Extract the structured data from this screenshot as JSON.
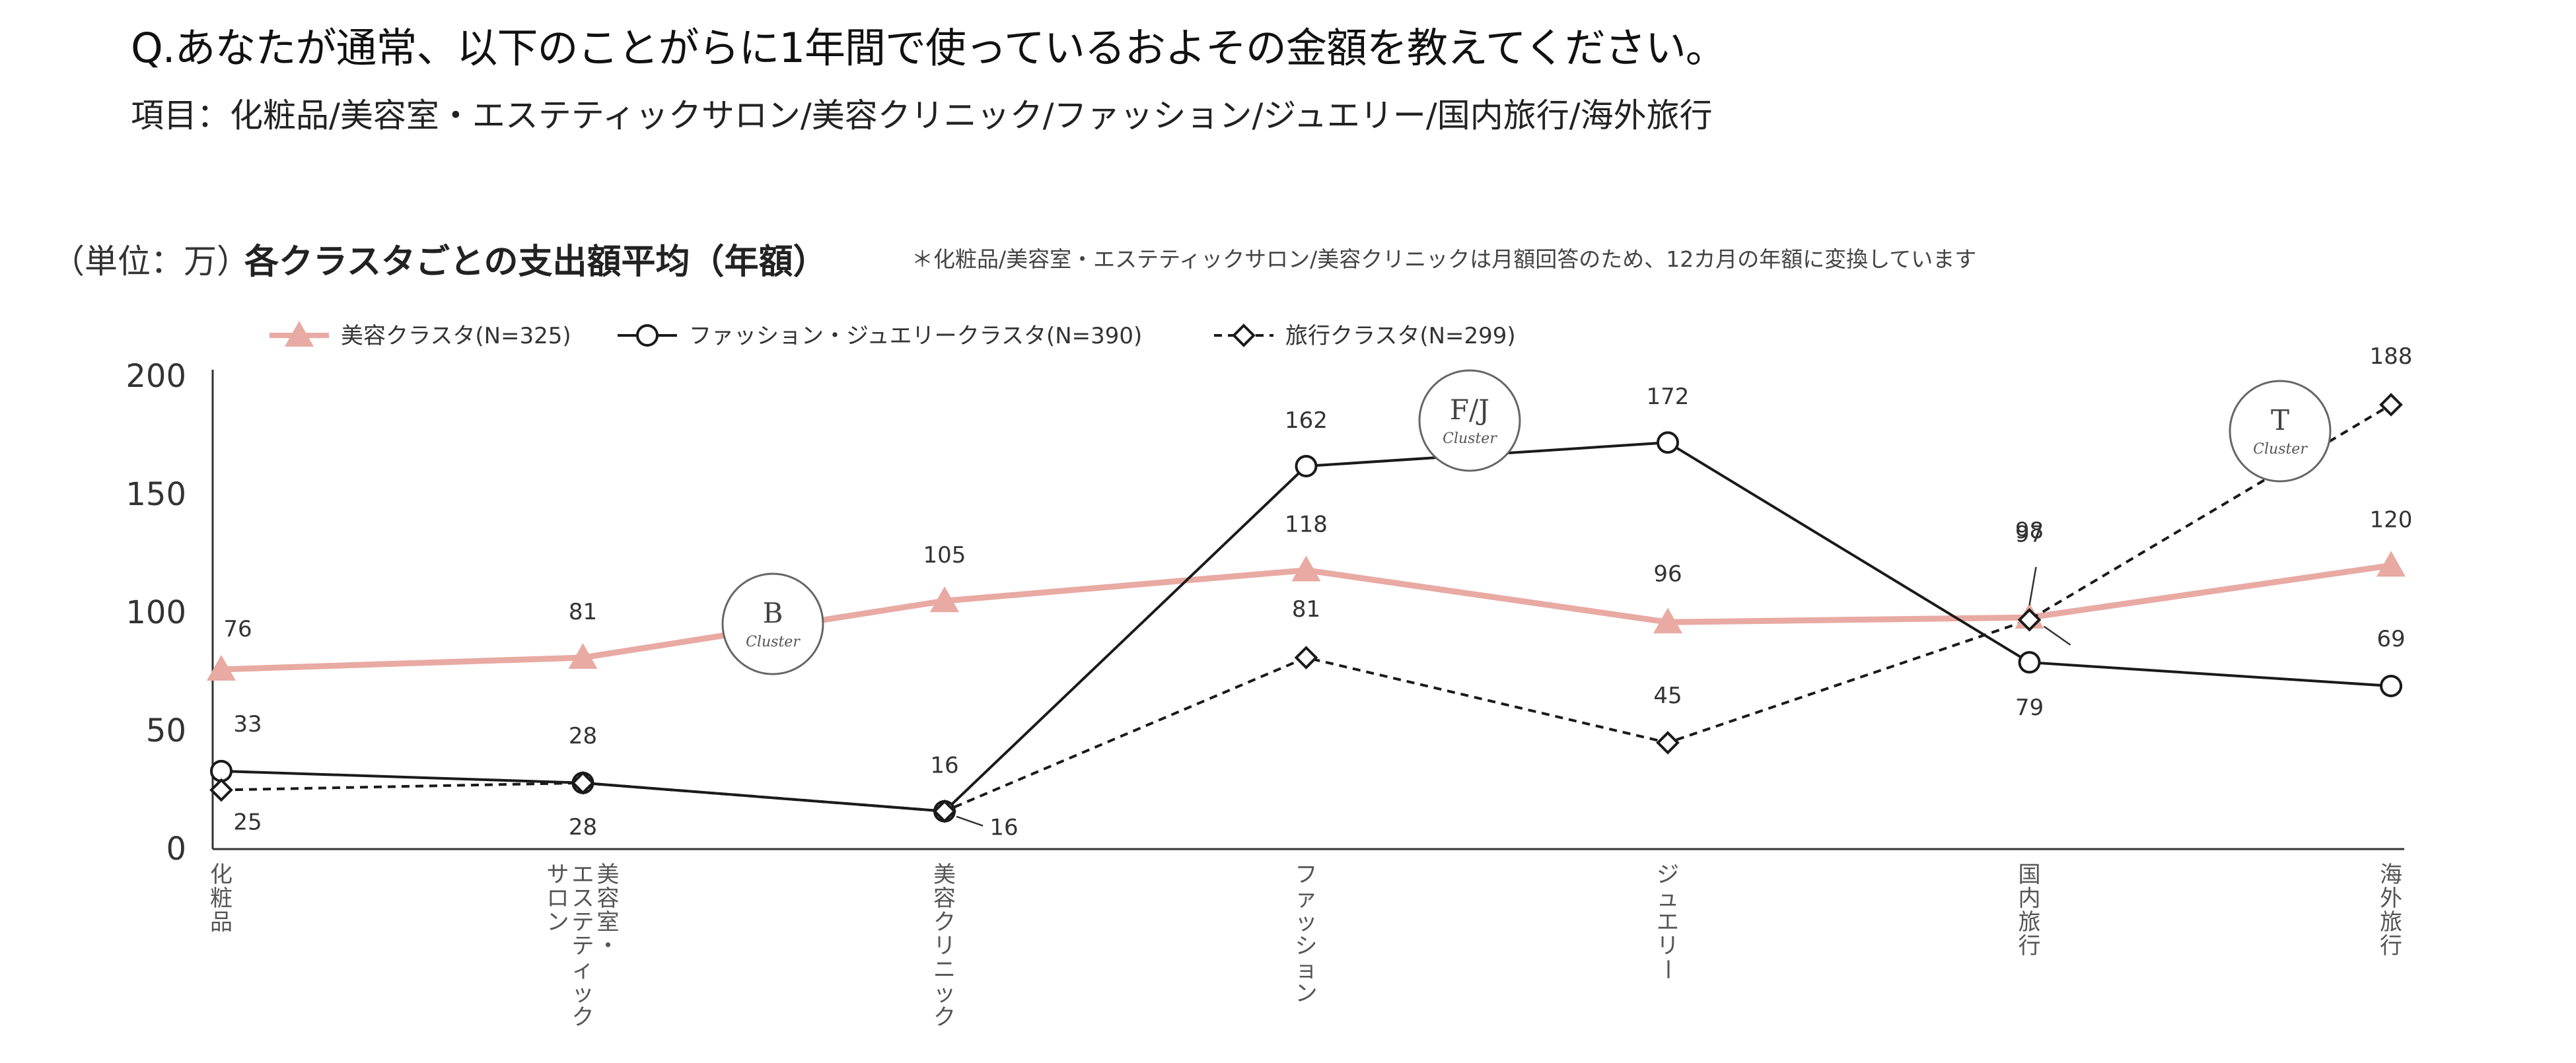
{
  "header": {
    "question": "Q.あなたが通常、以下のことがらに1年間で使っているおよその金額を教えてください。",
    "items": "項目：化粧品/美容室・エステティックサロン/美容クリニック/ファッション/ジュエリー/国内旅行/海外旅行"
  },
  "chart_data": {
    "type": "line",
    "unit_label": "（単位：万）",
    "title": "各クラスタごとの支出額平均（年額）",
    "note": "＊化粧品/美容室・エステティックサロン/美容クリニックは月額回答のため、12カ月の年額に変換しています",
    "categories": [
      "化粧品",
      "美容室・エステティックサロン",
      "美容クリニック",
      "ファッション",
      "ジュエリー",
      "国内旅行",
      "海外旅行"
    ],
    "category_display": [
      "化粧品",
      "美容室・\nエステティック\nサロン",
      "美容クリニック",
      "ファッション",
      "ジュエリー",
      "国内旅行",
      "海外旅行"
    ],
    "yticks": [
      0,
      50,
      100,
      150,
      200
    ],
    "ylim": [
      0,
      200
    ],
    "legend_position": "top-left",
    "series": [
      {
        "name": "美容クラスタ(N=325)",
        "values": [
          76,
          81,
          105,
          118,
          96,
          98,
          120
        ],
        "color": "#e8aaa3",
        "marker": "triangle",
        "dash": false
      },
      {
        "name": "ファッション・ジュエリークラスタ(N=390)",
        "values": [
          33,
          28,
          16,
          162,
          172,
          79,
          69
        ],
        "color": "#1a1a1a",
        "marker": "circle",
        "dash": false
      },
      {
        "name": "旅行クラスタ(N=299)",
        "values": [
          25,
          28,
          16,
          81,
          45,
          97,
          188
        ],
        "color": "#1a1a1a",
        "marker": "diamond",
        "dash": true
      }
    ],
    "cluster_badges": [
      {
        "letter": "B",
        "sub": "Cluster"
      },
      {
        "letter": "F/J",
        "sub": "Cluster"
      },
      {
        "letter": "T",
        "sub": "Cluster"
      }
    ]
  }
}
